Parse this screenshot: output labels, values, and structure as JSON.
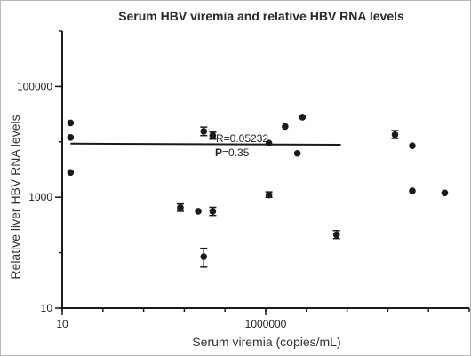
{
  "chart_data": {
    "type": "scatter",
    "title": "Serum HBV viremia and relative HBV RNA levels",
    "xlabel": "Serum viremia (copies/mL)",
    "ylabel": "Relative liver HBV RNA levels",
    "x_scale": "log",
    "y_scale": "log",
    "xlim": [
      10,
      100000000000
    ],
    "ylim": [
      10,
      1000000
    ],
    "x_ticks": [
      10,
      1000000
    ],
    "x_tick_labels": [
      "10",
      "1000000"
    ],
    "y_ticks": [
      10,
      1000,
      100000
    ],
    "y_tick_labels": [
      "10",
      "1000",
      "100000"
    ],
    "points": [
      {
        "x": 16,
        "y": 22000
      },
      {
        "x": 16,
        "y": 12000
      },
      {
        "x": 16,
        "y": 2800
      },
      {
        "x": 8000,
        "y": 650,
        "err_lo": 560,
        "err_hi": 760
      },
      {
        "x": 22000,
        "y": 560
      },
      {
        "x": 30000,
        "y": 15500,
        "err_lo": 13000,
        "err_hi": 18500
      },
      {
        "x": 30000,
        "y": 85,
        "err_lo": 55,
        "err_hi": 120
      },
      {
        "x": 50000,
        "y": 13000,
        "err_lo": 11200,
        "err_hi": 15000
      },
      {
        "x": 50000,
        "y": 560,
        "err_lo": 470,
        "err_hi": 660
      },
      {
        "x": 1200000,
        "y": 9500
      },
      {
        "x": 1200000,
        "y": 1100,
        "err_lo": 1000,
        "err_hi": 1250
      },
      {
        "x": 3000000,
        "y": 19000
      },
      {
        "x": 6000000,
        "y": 6200
      },
      {
        "x": 8000000,
        "y": 28000
      },
      {
        "x": 55000000,
        "y": 210,
        "err_lo": 180,
        "err_hi": 250
      },
      {
        "x": 1500000000,
        "y": 13500,
        "err_lo": 11500,
        "err_hi": 16000
      },
      {
        "x": 4000000000,
        "y": 8500
      },
      {
        "x": 4000000000,
        "y": 1300
      },
      {
        "x": 25000000000,
        "y": 1200
      }
    ],
    "regression": {
      "x": [
        16,
        70000000
      ],
      "y": [
        9300,
        8900
      ]
    },
    "annotations": {
      "r_text": "R=0.05232",
      "p_label": "P",
      "p_value": "=0.35"
    },
    "grid": false,
    "legend": "none"
  },
  "colors": {
    "points": "#1a1a1a",
    "axis": "#1a1a1a",
    "text": "#222222"
  }
}
